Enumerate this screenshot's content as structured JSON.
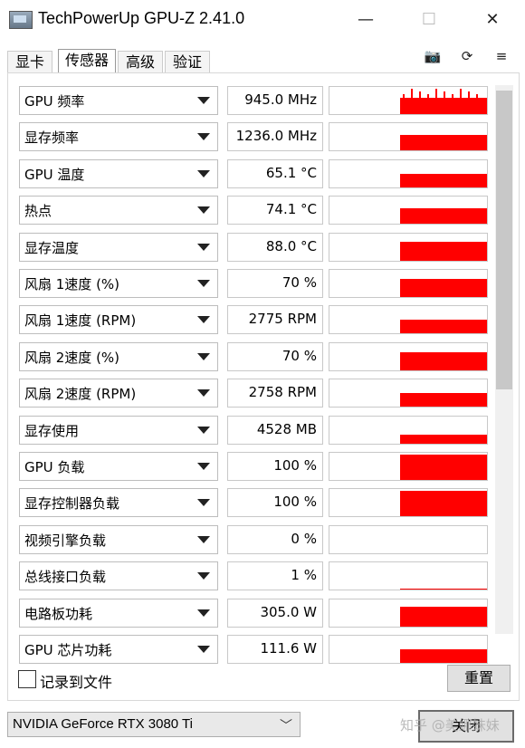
{
  "window": {
    "title": "TechPowerUp GPU-Z 2.41.0",
    "minimize_glyph": "—",
    "maximize_glyph": "☐",
    "close_glyph": "✕"
  },
  "tabs": [
    {
      "label": "显卡",
      "active": false
    },
    {
      "label": "传感器",
      "active": true
    },
    {
      "label": "高级",
      "active": false
    },
    {
      "label": "验证",
      "active": false
    }
  ],
  "toolbar": {
    "camera_glyph": "📷",
    "refresh_glyph": "⟳",
    "menu_glyph": "≡"
  },
  "colors": {
    "graph": "#ff0000"
  },
  "sensors": [
    {
      "name": "GPU 频率",
      "value": "945.0 MHz",
      "graph_level": 0.65,
      "spiky": true
    },
    {
      "name": "显存频率",
      "value": "1236.0 MHz",
      "graph_level": 0.6,
      "spiky": false
    },
    {
      "name": "GPU 温度",
      "value": "65.1 °C",
      "graph_level": 0.55,
      "spiky": false
    },
    {
      "name": "热点",
      "value": "74.1 °C",
      "graph_level": 0.6,
      "spiky": false
    },
    {
      "name": "显存温度",
      "value": "88.0 °C",
      "graph_level": 0.75,
      "spiky": false
    },
    {
      "name": "风扇 1速度 (%)",
      "value": "70 %",
      "graph_level": 0.7,
      "spiky": false
    },
    {
      "name": "风扇 1速度 (RPM)",
      "value": "2775 RPM",
      "graph_level": 0.55,
      "spiky": false
    },
    {
      "name": "风扇 2速度 (%)",
      "value": "70 %",
      "graph_level": 0.7,
      "spiky": false
    },
    {
      "name": "风扇 2速度 (RPM)",
      "value": "2758 RPM",
      "graph_level": 0.55,
      "spiky": false
    },
    {
      "name": "显存使用",
      "value": "4528 MB",
      "graph_level": 0.35,
      "spiky": false
    },
    {
      "name": "GPU 负载",
      "value": "100 %",
      "graph_level": 1.0,
      "spiky": false
    },
    {
      "name": "显存控制器负载",
      "value": "100 %",
      "graph_level": 1.0,
      "spiky": false
    },
    {
      "name": "视频引擎负载",
      "value": "0 %",
      "graph_level": 0,
      "spiky": false
    },
    {
      "name": "总线接口负载",
      "value": "1 %",
      "graph_level": 0.03,
      "spiky": false
    },
    {
      "name": "电路板功耗",
      "value": "305.0 W",
      "graph_level": 0.8,
      "spiky": false
    },
    {
      "name": "GPU 芯片功耗",
      "value": "111.6 W",
      "graph_level": 0.55,
      "spiky": false
    }
  ],
  "footer": {
    "log_to_file_label": "记录到文件",
    "log_to_file_checked": false,
    "reset_label": "重置",
    "gpu_selected": "NVIDIA GeForce RTX 3080 Ti",
    "close_label": "关闭",
    "watermark": "知乎 @美娜妹妹"
  }
}
